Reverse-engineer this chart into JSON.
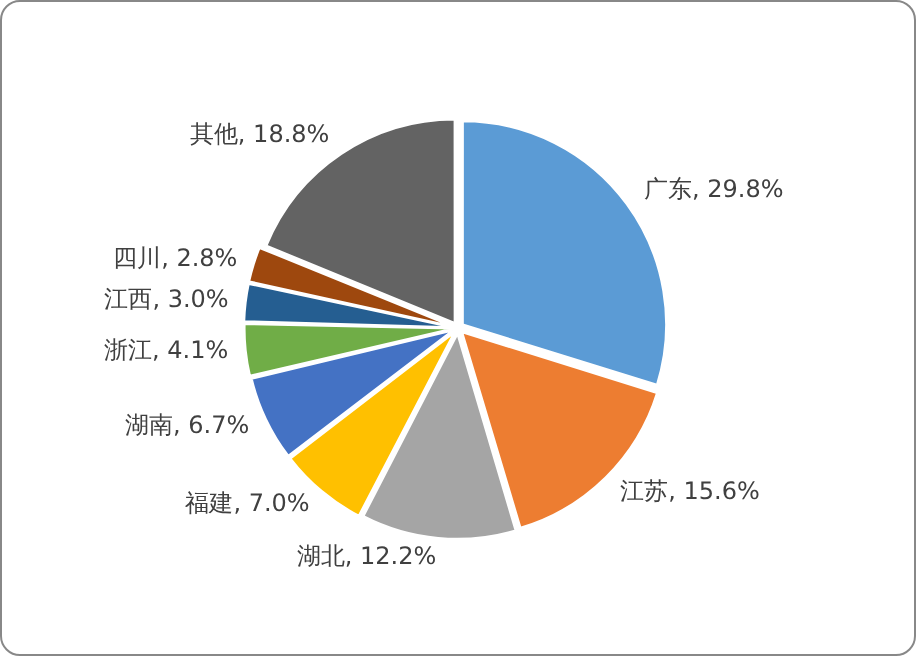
{
  "chart_data": {
    "type": "pie",
    "categories": [
      "广东",
      "江苏",
      "湖北",
      "福建",
      "湖南",
      "浙江",
      "江西",
      "四川",
      "其他"
    ],
    "values": [
      29.8,
      15.6,
      12.2,
      7.0,
      6.7,
      4.1,
      3.0,
      2.8,
      18.8
    ],
    "value_labels": [
      "29.8%",
      "15.6%",
      "12.2%",
      "7.0%",
      "6.7%",
      "4.1%",
      "3.0%",
      "2.8%",
      "18.8%"
    ],
    "colors": [
      "#5b9bd5",
      "#ed7d31",
      "#a5a5a5",
      "#ffc000",
      "#4472c4",
      "#70ad47",
      "#255e91",
      "#9e480e",
      "#636363"
    ],
    "legend": false
  }
}
